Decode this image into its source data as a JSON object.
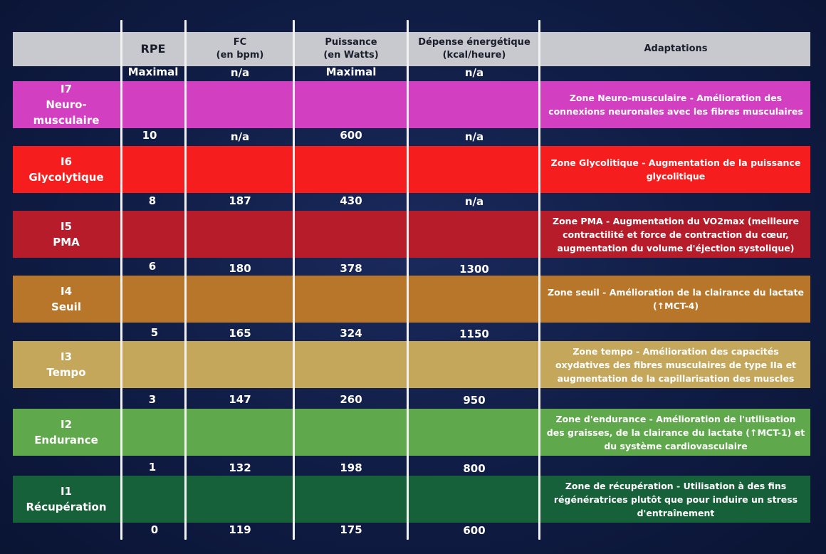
{
  "columns": {
    "rpe": "RPE",
    "fc_line1": "FC",
    "fc_line2": "(en bpm)",
    "puissance_line1": "Puissance",
    "puissance_line2": "(en Watts)",
    "depense_line1": "Dépense énergétique",
    "depense_line2": "(kcal/heure)",
    "adaptations": "Adaptations"
  },
  "boundaries": [
    {
      "rpe": "Maximal",
      "fc": "n/a",
      "puissance": "Maximal",
      "depense": "n/a"
    },
    {
      "rpe": "10",
      "fc": "n/a",
      "puissance": "600",
      "depense": "n/a"
    },
    {
      "rpe": "8",
      "fc": "187",
      "puissance": "430",
      "depense": "n/a"
    },
    {
      "rpe": "6",
      "fc": "180",
      "puissance": "378",
      "depense": "1300"
    },
    {
      "rpe": "5",
      "fc": "165",
      "puissance": "324",
      "depense": "1150"
    },
    {
      "rpe": "3",
      "fc": "147",
      "puissance": "260",
      "depense": "950"
    },
    {
      "rpe": "1",
      "fc": "132",
      "puissance": "198",
      "depense": "800"
    },
    {
      "rpe": "0",
      "fc": "119",
      "puissance": "175",
      "depense": "600"
    }
  ],
  "zones": [
    {
      "code": "I7",
      "name_line1": "Neuro-",
      "name_line2": "musculaire",
      "color": "#d23fc0",
      "adaptation": "Zone Neuro-musculaire - Amélioration des connexions neuronales avec les fibres musculaires"
    },
    {
      "code": "I6",
      "name_line1": "Glycolytique",
      "name_line2": "",
      "color": "#f51d1d",
      "adaptation": "Zone Glycolitique - Augmentation de la puissance glycolitique"
    },
    {
      "code": "I5",
      "name_line1": "PMA",
      "name_line2": "",
      "color": "#b71c2b",
      "adaptation": "Zone PMA - Augmentation du VO2max  (meilleure contractilité et force de contraction du cœur, augmentation du volume d'éjection systolique)"
    },
    {
      "code": "I4",
      "name_line1": "Seuil",
      "name_line2": "",
      "color": "#b8762a",
      "adaptation": "Zone seuil - Amélioration de la clairance du lactate (↑MCT-4)"
    },
    {
      "code": "I3",
      "name_line1": "Tempo",
      "name_line2": "",
      "color": "#c5a75c",
      "adaptation": "Zone tempo - Amélioration des capacités oxydatives des fibres musculaires de type IIa et augmentation de la capillarisation des muscles"
    },
    {
      "code": "I2",
      "name_line1": "Endurance",
      "name_line2": "",
      "color": "#5fa84b",
      "adaptation": "Zone d'endurance - Amélioration de l'utilisation des graisses, de la clairance du lactate (↑MCT-1)  et du système cardiovasculaire"
    },
    {
      "code": "I1",
      "name_line1": "Récupération",
      "name_line2": "",
      "color": "#17613a",
      "adaptation": "Zone de récupération - Utilisation à des fins régénératrices plutôt que pour induire un stress d'entraînement"
    }
  ]
}
